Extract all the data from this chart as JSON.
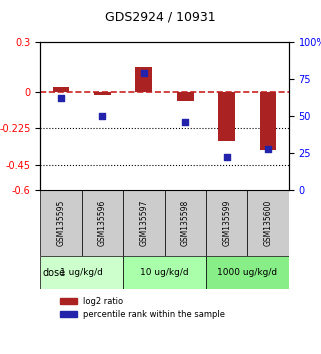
{
  "title": "GDS2924 / 10931",
  "samples": [
    "GSM135595",
    "GSM135596",
    "GSM135597",
    "GSM135598",
    "GSM135599",
    "GSM135600"
  ],
  "log2_ratio": [
    0.03,
    -0.02,
    0.15,
    -0.055,
    -0.3,
    -0.355
  ],
  "percentile_rank": [
    62,
    50,
    79,
    46,
    22,
    28
  ],
  "ylim_left": [
    -0.6,
    0.3
  ],
  "ylim_right": [
    0,
    100
  ],
  "yticks_left": [
    0.3,
    0,
    -0.225,
    -0.45,
    -0.6
  ],
  "yticks_right": [
    100,
    75,
    50,
    25,
    0
  ],
  "hlines": [
    -0.225,
    -0.45
  ],
  "dose_groups": [
    {
      "label": "1 ug/kg/d",
      "start": 0,
      "end": 2,
      "color": "#ccffcc"
    },
    {
      "label": "10 ug/kg/d",
      "start": 2,
      "end": 4,
      "color": "#aaffaa"
    },
    {
      "label": "1000 ug/kg/d",
      "start": 4,
      "end": 6,
      "color": "#88ee88"
    }
  ],
  "bar_color": "#aa2222",
  "scatter_color": "#2222aa",
  "dashed_line_color": "#cc2222",
  "bg_color": "#ffffff",
  "sample_box_color": "#cccccc",
  "legend_red_label": "log2 ratio",
  "legend_blue_label": "percentile rank within the sample"
}
